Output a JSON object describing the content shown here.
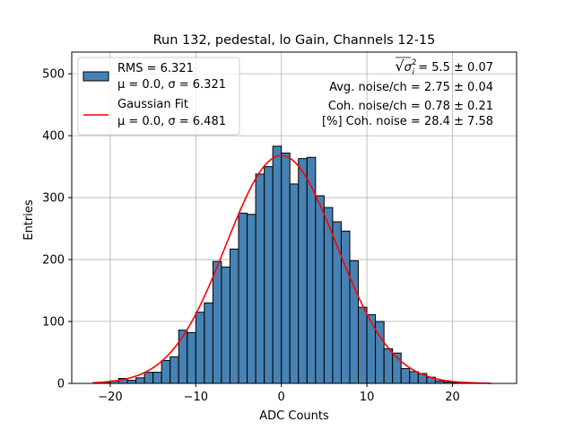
{
  "chart_data": {
    "type": "bar",
    "title": "Run 132, pedestal, lo Gain, Channels 12-15",
    "xlabel": "ADC Counts",
    "ylabel": "Entries",
    "xlim": [
      -24.5,
      27.5
    ],
    "ylim": [
      0,
      535
    ],
    "grid": true,
    "xticks": [
      -20,
      -10,
      0,
      10,
      20
    ],
    "xtick_labels": [
      "−20",
      "−10",
      "0",
      "10",
      "20"
    ],
    "yticks": [
      0,
      100,
      200,
      300,
      400,
      500
    ],
    "ytick_labels": [
      "0",
      "100",
      "200",
      "300",
      "400",
      "500"
    ],
    "bin_width": 1,
    "bin_left_edges": [
      -22,
      -21,
      -20,
      -19,
      -18,
      -17,
      -16,
      -15,
      -14,
      -13,
      -12,
      -11,
      -10,
      -9,
      -8,
      -7,
      -6,
      -5,
      -4,
      -3,
      -2,
      -1,
      0,
      1,
      2,
      3,
      4,
      5,
      6,
      7,
      8,
      9,
      10,
      11,
      12,
      13,
      14,
      15,
      16,
      17,
      18,
      19,
      20,
      21,
      22,
      23,
      24
    ],
    "counts": [
      1,
      2,
      4,
      8,
      5,
      9,
      18,
      18,
      37,
      43,
      86,
      82,
      115,
      130,
      197,
      188,
      217,
      275,
      273,
      338,
      350,
      383,
      372,
      322,
      363,
      365,
      303,
      284,
      261,
      246,
      198,
      123,
      111,
      100,
      56,
      49,
      24,
      19,
      16,
      10,
      4,
      2,
      1,
      1,
      0,
      0,
      0
    ],
    "series": [
      {
        "name": "RMS = 6.321",
        "label_line2": "μ = 0.0, σ = 6.321",
        "kind": "histogram",
        "color": "#4682b4",
        "edgecolor": "#000000"
      },
      {
        "name": "Gaussian Fit",
        "label_line2": "μ = 0.0, σ = 6.481",
        "kind": "line",
        "color": "#ff0000",
        "mu": 0.0,
        "sigma": 6.481,
        "amplitude": 368,
        "x_range": [
          -22,
          24.5
        ]
      }
    ],
    "legend_position": "upper left",
    "annotations": [
      {
        "prefix": "√",
        "symbol": "σ",
        "sup": "2",
        "sub": "i",
        "text": " = 5.5 ± 0.07"
      },
      {
        "text": "Avg. noise/ch = 2.75 ± 0.04"
      },
      {
        "text": "Coh. noise/ch = 0.78 ± 0.21"
      },
      {
        "text": "[%] Coh. noise = 28.4 ± 7.58"
      }
    ]
  }
}
